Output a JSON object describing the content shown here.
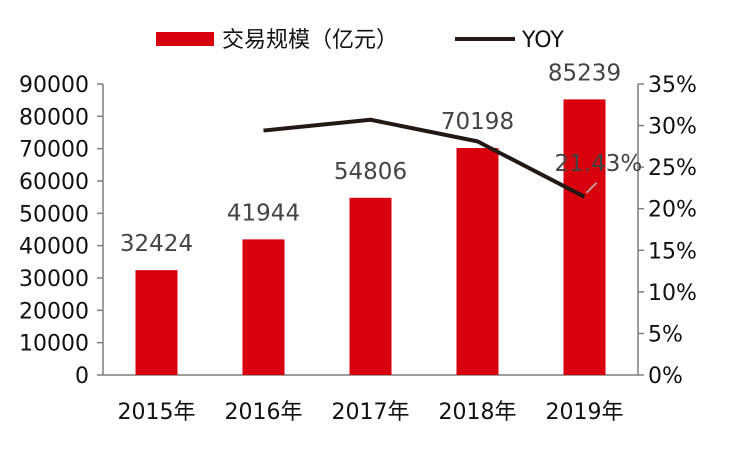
{
  "colors": {
    "bar": "#d9000e",
    "line": "#231815",
    "axis": "#7f7f7f",
    "text": "#111111",
    "label": "#444444"
  },
  "legend": {
    "bar_label": "交易规模（亿元）",
    "line_label": "YOY"
  },
  "chart_data": {
    "type": "bar",
    "categories": [
      "2015年",
      "2016年",
      "2017年",
      "2018年",
      "2019年"
    ],
    "series": [
      {
        "name": "交易规模（亿元）",
        "type": "bar",
        "axis": "left",
        "values": [
          32424,
          41944,
          54806,
          70198,
          85239
        ],
        "labels": [
          "32424",
          "41944",
          "54806",
          "70198",
          "85239"
        ]
      },
      {
        "name": "YOY",
        "type": "line",
        "axis": "right",
        "values": [
          null,
          29.4,
          30.7,
          28.1,
          21.43
        ],
        "labels": [
          "",
          "",
          "",
          "",
          "21.43%"
        ]
      }
    ],
    "y_left": {
      "ylim": [
        0,
        90000
      ],
      "ticks": [
        "0",
        "10000",
        "20000",
        "30000",
        "40000",
        "50000",
        "60000",
        "70000",
        "80000",
        "90000"
      ]
    },
    "y_right": {
      "ylim": [
        0,
        35
      ],
      "ticks": [
        "0%",
        "5%",
        "10%",
        "15%",
        "20%",
        "25%",
        "30%",
        "35%"
      ]
    },
    "legend_position": "top",
    "grid": false
  }
}
